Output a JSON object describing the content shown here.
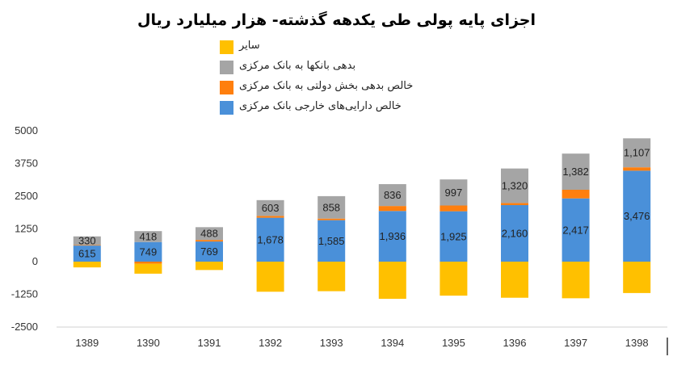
{
  "chart_data": {
    "type": "bar",
    "stacked": true,
    "title": "اجزای پایه پولی طی یکدهه گذشته- هزار میلیارد ریال",
    "categories": [
      "1389",
      "1390",
      "1391",
      "1392",
      "1393",
      "1394",
      "1395",
      "1396",
      "1397",
      "1398"
    ],
    "ylim": [
      -2500,
      5000
    ],
    "yticks": [
      "5000",
      "3750",
      "2500",
      "1250",
      "0",
      "-1250",
      "-2500"
    ],
    "legend_position": "top",
    "series": [
      {
        "name": "خالص دارایی‌های خارجی بانک مرکزی",
        "color": "#4A90D9",
        "values": [
          615,
          749,
          769,
          1678,
          1585,
          1936,
          1925,
          2160,
          2417,
          3476
        ],
        "labels": [
          "615",
          "749",
          "769",
          "1,678",
          "1,585",
          "1,936",
          "1,925",
          "2,160",
          "2,417",
          "3,476"
        ]
      },
      {
        "name": "خالص بدهی بخش دولتی به بانک مرکزی",
        "color": "#FF7F0E",
        "values": [
          20,
          -80,
          60,
          70,
          60,
          190,
          220,
          80,
          330,
          130
        ]
      },
      {
        "name": "بدهی بانکها به بانک مرکزی",
        "color": "#A5A5A5",
        "values": [
          330,
          418,
          488,
          603,
          858,
          836,
          997,
          1320,
          1382,
          1107
        ],
        "labels": [
          "330",
          "418",
          "488",
          "603",
          "858",
          "836",
          "997",
          "1,320",
          "1,382",
          "1,107"
        ]
      },
      {
        "name": "سایر",
        "color": "#FFC000",
        "values": [
          -220,
          -380,
          -320,
          -1150,
          -1130,
          -1420,
          -1300,
          -1380,
          -1400,
          -1200
        ]
      }
    ]
  }
}
